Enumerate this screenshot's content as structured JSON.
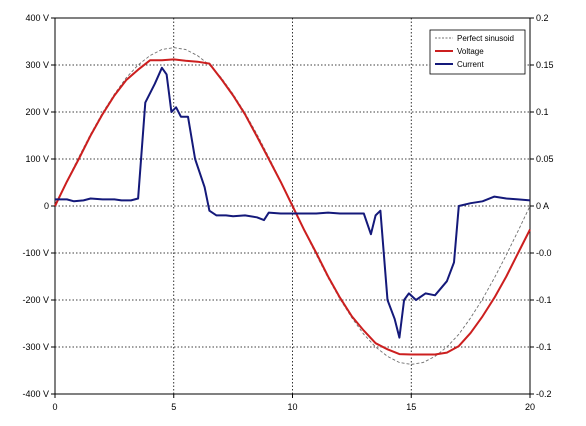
{
  "chart_data": {
    "type": "line",
    "title": "",
    "xlabel": "",
    "ylabel": "",
    "xlim": [
      0,
      20
    ],
    "ylim": [
      -400,
      400
    ],
    "y2lim": [
      -0.2,
      0.2
    ],
    "grid": "dotted, x every 5, y every 100",
    "legend": {
      "placement": "top-right"
    },
    "x_ticks": [
      "0",
      "5",
      "10",
      "15",
      "20"
    ],
    "y_ticks": [
      "400 V",
      "300 V",
      "200 V",
      "100 V",
      "0",
      "-100 V",
      "-200 V",
      "-300 V",
      "-400 V"
    ],
    "y2_ticks": [
      "0.2",
      "0.15",
      "0.1",
      "0.05",
      "0 A",
      "-0.0",
      "-0.1",
      "-0.1",
      "-0.2"
    ],
    "series": [
      {
        "name": "Perfect sinusoid",
        "color": "#707070",
        "style": "dashed",
        "axis": "left",
        "amplitude": 337,
        "period": 20,
        "x": [
          0,
          0.5,
          1,
          1.5,
          2,
          2.5,
          3,
          3.5,
          4,
          4.5,
          5,
          5.5,
          6,
          6.5,
          7,
          7.5,
          8,
          8.5,
          9,
          9.5,
          10,
          10.5,
          11,
          11.5,
          12,
          12.5,
          13,
          13.5,
          14,
          14.5,
          15,
          15.5,
          16,
          16.5,
          17,
          17.5,
          18,
          18.5,
          19,
          19.5,
          20
        ],
        "values": [
          0,
          53,
          104,
          153,
          198,
          238,
          273,
          300,
          320,
          333,
          337,
          333,
          320,
          300,
          273,
          238,
          198,
          153,
          104,
          53,
          0,
          -53,
          -104,
          -153,
          -198,
          -238,
          -273,
          -300,
          -320,
          -333,
          -337,
          -333,
          -320,
          -300,
          -273,
          -238,
          -198,
          -153,
          -104,
          -53,
          0
        ]
      },
      {
        "name": "Voltage",
        "color": "#cc1f1f",
        "style": "solid",
        "axis": "left",
        "x": [
          0,
          0.5,
          1,
          1.5,
          2,
          2.5,
          3,
          3.5,
          4,
          4.5,
          5,
          5.5,
          6,
          6.5,
          7,
          7.5,
          8,
          8.5,
          9,
          9.5,
          10,
          10.5,
          11,
          11.5,
          12,
          12.5,
          13,
          13.5,
          14,
          14.5,
          15,
          15.5,
          16,
          16.5,
          17,
          17.5,
          18,
          18.5,
          19,
          19.5,
          20
        ],
        "values": [
          0,
          52,
          100,
          150,
          195,
          235,
          268,
          290,
          310,
          310,
          312,
          309,
          307,
          303,
          270,
          235,
          195,
          148,
          100,
          52,
          0,
          -52,
          -100,
          -150,
          -195,
          -235,
          -265,
          -292,
          -305,
          -315,
          -316,
          -316,
          -316,
          -312,
          -298,
          -270,
          -235,
          -195,
          -150,
          -100,
          -50
        ]
      },
      {
        "name": "Current",
        "color": "#14197a",
        "style": "solid",
        "axis": "right",
        "x": [
          0,
          0.5,
          0.8,
          1.2,
          1.5,
          2,
          2.5,
          2.8,
          3.2,
          3.5,
          3.8,
          4.2,
          4.5,
          4.7,
          4.9,
          5.1,
          5.3,
          5.6,
          5.9,
          6.3,
          6.5,
          6.8,
          7.0,
          7.2,
          7.5,
          8,
          8.5,
          8.8,
          9,
          9.5,
          10,
          10.5,
          11,
          11.5,
          12,
          12.5,
          13,
          13.3,
          13.5,
          13.7,
          14,
          14.3,
          14.5,
          14.7,
          14.9,
          15.2,
          15.6,
          16,
          16.5,
          16.8,
          17,
          17.5,
          18,
          18.5,
          19,
          19.5,
          20
        ],
        "values": [
          0.007,
          0.007,
          0.005,
          0.006,
          0.008,
          0.007,
          0.007,
          0.006,
          0.006,
          0.008,
          0.11,
          0.13,
          0.147,
          0.14,
          0.1,
          0.105,
          0.095,
          0.095,
          0.05,
          0.02,
          -0.005,
          -0.01,
          -0.01,
          -0.01,
          -0.011,
          -0.01,
          -0.012,
          -0.015,
          -0.007,
          -0.008,
          -0.008,
          -0.008,
          -0.008,
          -0.007,
          -0.008,
          -0.008,
          -0.008,
          -0.03,
          -0.01,
          -0.005,
          -0.1,
          -0.12,
          -0.14,
          -0.1,
          -0.093,
          -0.1,
          -0.093,
          -0.095,
          -0.08,
          -0.06,
          0.0,
          0.003,
          0.005,
          0.01,
          0.008,
          0.007,
          0.006
        ]
      }
    ]
  }
}
